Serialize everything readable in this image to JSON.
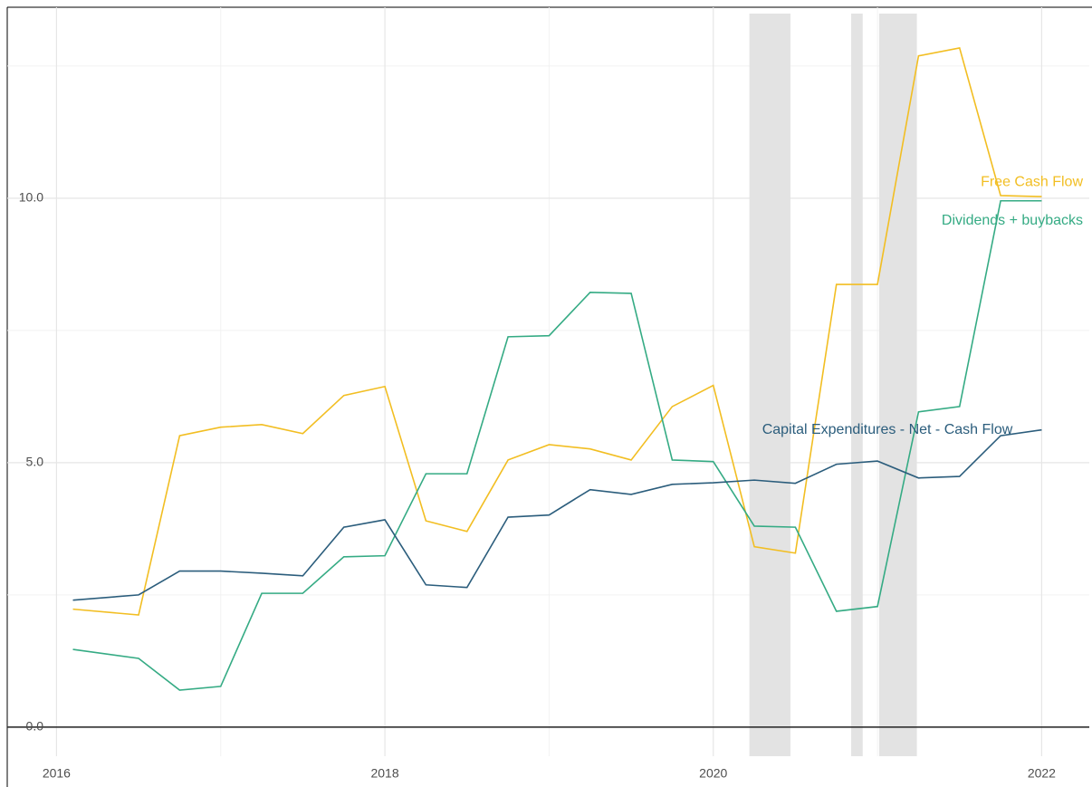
{
  "chart_data": {
    "type": "line",
    "x": [
      2016.1,
      2016.5,
      2016.75,
      2017.0,
      2017.25,
      2017.5,
      2017.75,
      2018.0,
      2018.25,
      2018.5,
      2018.75,
      2019.0,
      2019.25,
      2019.5,
      2019.75,
      2020.0,
      2020.25,
      2020.5,
      2020.75,
      2021.0,
      2021.25,
      2021.5,
      2021.75,
      2022.0
    ],
    "series": [
      {
        "name": "Free Cash Flow",
        "color": "#f2be22",
        "values": [
          2.23,
          2.12,
          5.51,
          5.67,
          5.72,
          5.55,
          6.27,
          6.44,
          3.9,
          3.7,
          5.05,
          5.34,
          5.26,
          5.05,
          6.06,
          6.46,
          3.41,
          3.29,
          8.37,
          8.37,
          12.69,
          12.84,
          10.05,
          10.03
        ]
      },
      {
        "name": "Dividends + buybacks",
        "color": "#35ab84",
        "values": [
          1.47,
          1.3,
          0.7,
          0.77,
          2.53,
          2.53,
          3.22,
          3.24,
          4.79,
          4.79,
          7.38,
          7.4,
          8.22,
          8.2,
          5.05,
          5.02,
          3.8,
          3.78,
          2.19,
          2.28,
          5.96,
          6.06,
          9.95,
          9.95
        ]
      },
      {
        "name": "Capital Expenditures - Net - Cash Flow",
        "color": "#2b5d7c",
        "values": [
          2.4,
          2.5,
          2.95,
          2.95,
          2.91,
          2.86,
          3.78,
          3.92,
          2.69,
          2.64,
          3.97,
          4.01,
          4.49,
          4.4,
          4.59,
          4.62,
          4.67,
          4.61,
          4.97,
          5.03,
          4.71,
          4.74,
          5.51,
          5.62
        ]
      }
    ],
    "shaded_regions": [
      [
        2020.22,
        2020.47
      ],
      [
        2020.84,
        2020.91
      ],
      [
        2021.01,
        2021.24
      ]
    ],
    "xlim": [
      2015.7,
      2022.29
    ],
    "xticks": [
      2016,
      2018,
      2020,
      2022
    ],
    "xminor": [
      2017,
      2019,
      2021
    ],
    "ylim": [
      -0.55,
      13.61
    ],
    "yticks": [
      {
        "value": 0,
        "label": "0.0"
      },
      {
        "value": 5,
        "label": "5.0"
      },
      {
        "value": 10,
        "label": "10.0"
      }
    ],
    "yminor": [
      2.5,
      7.5,
      12.5
    ],
    "grid": true
  }
}
